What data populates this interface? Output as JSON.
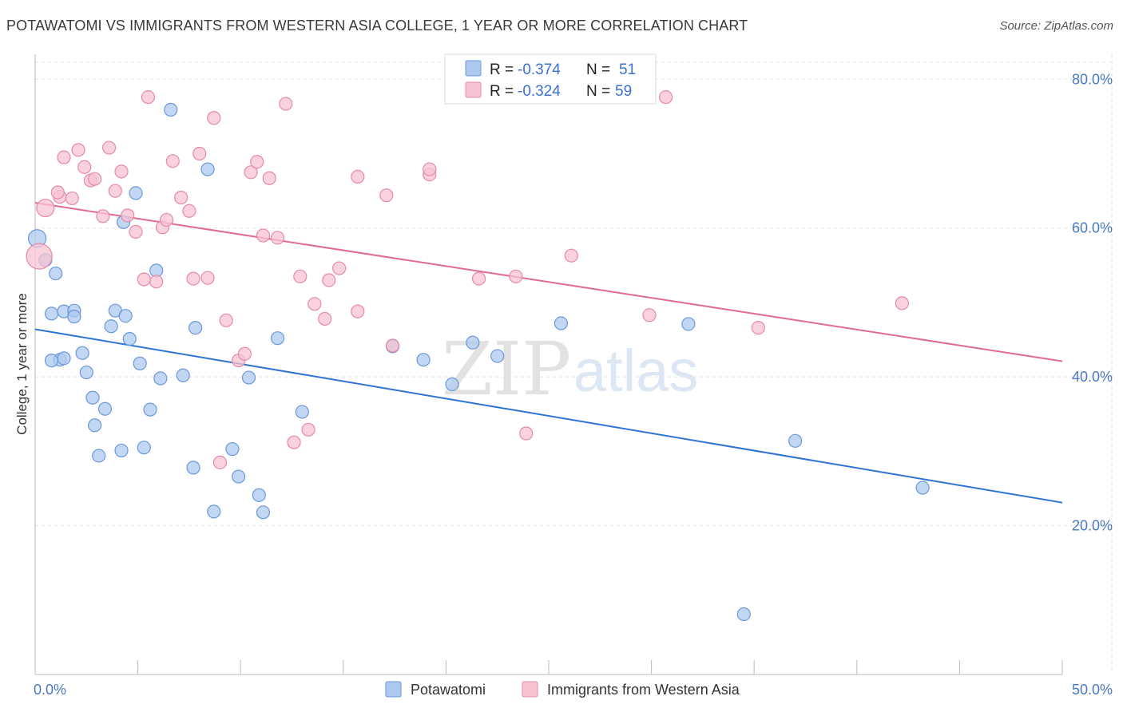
{
  "header": {
    "title": "POTAWATOMI VS IMMIGRANTS FROM WESTERN ASIA COLLEGE, 1 YEAR OR MORE CORRELATION CHART",
    "source": "Source: ZipAtlas.com"
  },
  "watermark": {
    "zip": "ZIP",
    "atlas": "atlas"
  },
  "legend_top": {
    "rows": [
      {
        "r_label": "R =",
        "r_value": "-0.374",
        "n_label": "N =",
        "n_value": "51"
      },
      {
        "r_label": "R =",
        "r_value": "-0.324",
        "n_label": "N =",
        "n_value": "59"
      }
    ]
  },
  "legend_bottom": {
    "items": [
      {
        "label": "Potawatomi"
      },
      {
        "label": "Immigrants from Western Asia"
      }
    ]
  },
  "colors": {
    "blue_fill": "#adc9f0",
    "blue_stroke": "#6a98d8",
    "blue_line": "#2f72d6",
    "pink_fill": "#f7c3d3",
    "pink_stroke": "#e58aa8",
    "pink_line": "#e06a93",
    "grid": "#e4e4e4",
    "tick_text": "#4a78c4"
  },
  "chart_data": {
    "type": "scatter",
    "title": "POTAWATOMI VS IMMIGRANTS FROM WESTERN ASIA COLLEGE, 1 YEAR OR MORE CORRELATION CHART",
    "xlabel": "",
    "ylabel": "College, 1 year or more",
    "xlim": [
      0,
      50
    ],
    "ylim": [
      0,
      84
    ],
    "x_tick_labels": [
      "0.0%",
      "50.0%"
    ],
    "y_ticks": [
      20,
      40,
      60,
      80
    ],
    "y_tick_labels": [
      "20.0%",
      "40.0%",
      "60.0%",
      "80.0%"
    ],
    "grid": true,
    "legend_position": "top-center",
    "series": [
      {
        "name": "Potawatomi",
        "r": -0.374,
        "n": 51,
        "trend": {
          "x": [
            0,
            50
          ],
          "y": [
            46.4,
            23.1
          ]
        },
        "points": [
          {
            "x": 0.1,
            "y": 58.6,
            "s": "l"
          },
          {
            "x": 0.5,
            "y": 55.7
          },
          {
            "x": 1.0,
            "y": 53.9
          },
          {
            "x": 0.8,
            "y": 48.5
          },
          {
            "x": 1.4,
            "y": 48.8
          },
          {
            "x": 1.9,
            "y": 48.9
          },
          {
            "x": 1.9,
            "y": 48.1
          },
          {
            "x": 1.2,
            "y": 42.3
          },
          {
            "x": 1.4,
            "y": 42.5
          },
          {
            "x": 2.3,
            "y": 43.2
          },
          {
            "x": 2.5,
            "y": 40.6
          },
          {
            "x": 2.8,
            "y": 37.2
          },
          {
            "x": 2.9,
            "y": 33.5
          },
          {
            "x": 3.1,
            "y": 29.4
          },
          {
            "x": 3.4,
            "y": 35.7
          },
          {
            "x": 3.7,
            "y": 46.8
          },
          {
            "x": 3.9,
            "y": 48.9
          },
          {
            "x": 4.2,
            "y": 30.1
          },
          {
            "x": 4.4,
            "y": 48.2
          },
          {
            "x": 4.6,
            "y": 45.1
          },
          {
            "x": 4.3,
            "y": 60.8
          },
          {
            "x": 4.9,
            "y": 64.7
          },
          {
            "x": 5.1,
            "y": 41.8
          },
          {
            "x": 5.3,
            "y": 30.5
          },
          {
            "x": 5.6,
            "y": 35.6
          },
          {
            "x": 5.9,
            "y": 54.3
          },
          {
            "x": 6.1,
            "y": 39.8
          },
          {
            "x": 6.6,
            "y": 75.9
          },
          {
            "x": 7.2,
            "y": 40.2
          },
          {
            "x": 7.7,
            "y": 27.8
          },
          {
            "x": 7.8,
            "y": 46.6
          },
          {
            "x": 8.4,
            "y": 67.9
          },
          {
            "x": 8.7,
            "y": 21.9
          },
          {
            "x": 9.6,
            "y": 30.3
          },
          {
            "x": 9.9,
            "y": 26.6
          },
          {
            "x": 10.4,
            "y": 39.9
          },
          {
            "x": 10.9,
            "y": 24.1
          },
          {
            "x": 11.1,
            "y": 21.8
          },
          {
            "x": 11.8,
            "y": 45.2
          },
          {
            "x": 13.0,
            "y": 35.3
          },
          {
            "x": 17.4,
            "y": 44.1
          },
          {
            "x": 18.9,
            "y": 42.3
          },
          {
            "x": 20.3,
            "y": 39.0
          },
          {
            "x": 21.3,
            "y": 44.6
          },
          {
            "x": 22.5,
            "y": 42.8
          },
          {
            "x": 25.6,
            "y": 47.2
          },
          {
            "x": 31.8,
            "y": 47.1
          },
          {
            "x": 34.5,
            "y": 8.1
          },
          {
            "x": 37.0,
            "y": 31.4
          },
          {
            "x": 43.2,
            "y": 25.1
          },
          {
            "x": 0.8,
            "y": 42.2
          }
        ]
      },
      {
        "name": "Immigrants from Western Asia",
        "r": -0.324,
        "n": 59,
        "trend": {
          "x": [
            0,
            50
          ],
          "y": [
            63.4,
            42.1
          ]
        },
        "points": [
          {
            "x": 0.2,
            "y": 56.2,
            "s": "xl"
          },
          {
            "x": 0.5,
            "y": 62.7,
            "s": "l"
          },
          {
            "x": 1.2,
            "y": 64.2
          },
          {
            "x": 1.1,
            "y": 64.8
          },
          {
            "x": 1.4,
            "y": 69.5
          },
          {
            "x": 1.8,
            "y": 64.0
          },
          {
            "x": 2.1,
            "y": 70.5
          },
          {
            "x": 2.4,
            "y": 68.2
          },
          {
            "x": 2.7,
            "y": 66.4
          },
          {
            "x": 2.9,
            "y": 66.6
          },
          {
            "x": 3.3,
            "y": 61.6
          },
          {
            "x": 3.6,
            "y": 70.8
          },
          {
            "x": 3.9,
            "y": 65.0
          },
          {
            "x": 4.2,
            "y": 67.6
          },
          {
            "x": 4.5,
            "y": 61.7
          },
          {
            "x": 4.9,
            "y": 59.5
          },
          {
            "x": 5.3,
            "y": 53.1
          },
          {
            "x": 5.5,
            "y": 77.6
          },
          {
            "x": 5.9,
            "y": 52.8
          },
          {
            "x": 6.2,
            "y": 60.1
          },
          {
            "x": 6.4,
            "y": 61.1
          },
          {
            "x": 6.7,
            "y": 69.0
          },
          {
            "x": 7.1,
            "y": 64.1
          },
          {
            "x": 7.5,
            "y": 62.3
          },
          {
            "x": 7.7,
            "y": 53.2
          },
          {
            "x": 8.0,
            "y": 70.0
          },
          {
            "x": 8.4,
            "y": 53.3
          },
          {
            "x": 8.7,
            "y": 74.8
          },
          {
            "x": 9.0,
            "y": 28.5
          },
          {
            "x": 9.3,
            "y": 47.6
          },
          {
            "x": 9.9,
            "y": 42.2
          },
          {
            "x": 10.2,
            "y": 43.1
          },
          {
            "x": 10.5,
            "y": 67.5
          },
          {
            "x": 10.8,
            "y": 68.9
          },
          {
            "x": 11.1,
            "y": 59.0
          },
          {
            "x": 11.4,
            "y": 66.7
          },
          {
            "x": 11.8,
            "y": 58.7
          },
          {
            "x": 12.2,
            "y": 76.7
          },
          {
            "x": 12.6,
            "y": 31.2
          },
          {
            "x": 12.9,
            "y": 53.5
          },
          {
            "x": 13.3,
            "y": 32.9
          },
          {
            "x": 13.6,
            "y": 49.8
          },
          {
            "x": 14.1,
            "y": 47.8
          },
          {
            "x": 14.3,
            "y": 53.0
          },
          {
            "x": 14.8,
            "y": 54.6
          },
          {
            "x": 15.7,
            "y": 48.8
          },
          {
            "x": 15.7,
            "y": 66.9
          },
          {
            "x": 17.1,
            "y": 64.4
          },
          {
            "x": 17.4,
            "y": 44.2
          },
          {
            "x": 19.2,
            "y": 67.2
          },
          {
            "x": 19.2,
            "y": 67.9
          },
          {
            "x": 21.6,
            "y": 53.2
          },
          {
            "x": 23.4,
            "y": 53.5
          },
          {
            "x": 23.9,
            "y": 32.4
          },
          {
            "x": 26.1,
            "y": 56.3
          },
          {
            "x": 29.9,
            "y": 48.3
          },
          {
            "x": 35.2,
            "y": 46.6
          },
          {
            "x": 42.2,
            "y": 49.9
          },
          {
            "x": 30.7,
            "y": 77.6
          }
        ]
      }
    ]
  }
}
